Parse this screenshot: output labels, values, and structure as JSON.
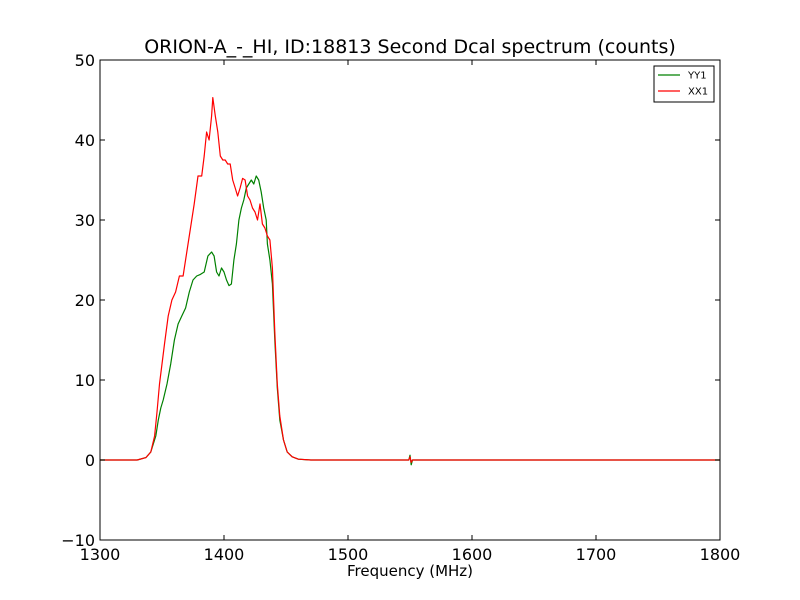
{
  "chart_data": {
    "type": "line",
    "title": "ORION-A_-_HI, ID:18813 Second Dcal spectrum (counts)",
    "xlabel": "Frequency (MHz)",
    "ylabel": "",
    "xlim": [
      1300,
      1800
    ],
    "ylim": [
      -10,
      50
    ],
    "xticks": [
      1300,
      1400,
      1500,
      1600,
      1700,
      1800
    ],
    "yticks": [
      -10,
      0,
      10,
      20,
      30,
      40,
      50
    ],
    "grid": false,
    "legend_position": "top-right",
    "series": [
      {
        "name": "YY1",
        "color": "#008000",
        "points": [
          [
            1300,
            0
          ],
          [
            1330,
            0
          ],
          [
            1337,
            0.3
          ],
          [
            1341,
            1
          ],
          [
            1345,
            3
          ],
          [
            1347,
            5
          ],
          [
            1349,
            6.5
          ],
          [
            1351,
            7.5
          ],
          [
            1354,
            9.5
          ],
          [
            1357,
            12
          ],
          [
            1360,
            15
          ],
          [
            1363,
            17
          ],
          [
            1366,
            18
          ],
          [
            1369,
            19
          ],
          [
            1372,
            21
          ],
          [
            1375,
            22.5
          ],
          [
            1378,
            23
          ],
          [
            1381,
            23.2
          ],
          [
            1384,
            23.5
          ],
          [
            1387,
            25.5
          ],
          [
            1390,
            26
          ],
          [
            1392,
            25.5
          ],
          [
            1394,
            23.5
          ],
          [
            1396,
            23
          ],
          [
            1398,
            24
          ],
          [
            1400,
            23.5
          ],
          [
            1402,
            22.5
          ],
          [
            1404,
            21.8
          ],
          [
            1406,
            22
          ],
          [
            1408,
            25
          ],
          [
            1410,
            27
          ],
          [
            1412,
            30
          ],
          [
            1414,
            31.5
          ],
          [
            1416,
            32.5
          ],
          [
            1418,
            34
          ],
          [
            1420,
            34.5
          ],
          [
            1422,
            35
          ],
          [
            1424,
            34.5
          ],
          [
            1426,
            35.5
          ],
          [
            1428,
            35
          ],
          [
            1430,
            33.5
          ],
          [
            1432,
            31.5
          ],
          [
            1434,
            30
          ],
          [
            1435,
            27
          ],
          [
            1437,
            25
          ],
          [
            1439,
            22
          ],
          [
            1441,
            15
          ],
          [
            1443,
            9
          ],
          [
            1445,
            5
          ],
          [
            1448,
            2.5
          ],
          [
            1451,
            1
          ],
          [
            1455,
            0.4
          ],
          [
            1460,
            0.1
          ],
          [
            1470,
            0
          ],
          [
            1500,
            0
          ],
          [
            1549,
            0
          ],
          [
            1550,
            0.6
          ],
          [
            1551,
            -0.6
          ],
          [
            1552,
            0
          ],
          [
            1600,
            0
          ],
          [
            1700,
            0
          ],
          [
            1800,
            0
          ]
        ]
      },
      {
        "name": "XX1",
        "color": "#ff0000",
        "points": [
          [
            1300,
            0
          ],
          [
            1330,
            0
          ],
          [
            1337,
            0.3
          ],
          [
            1341,
            1
          ],
          [
            1344,
            3
          ],
          [
            1346,
            6
          ],
          [
            1348,
            9.5
          ],
          [
            1350,
            12
          ],
          [
            1352,
            14.5
          ],
          [
            1355,
            18
          ],
          [
            1358,
            20
          ],
          [
            1361,
            21
          ],
          [
            1364,
            23
          ],
          [
            1367,
            23
          ],
          [
            1370,
            26
          ],
          [
            1373,
            29
          ],
          [
            1376,
            32
          ],
          [
            1379,
            35.5
          ],
          [
            1382,
            35.5
          ],
          [
            1384,
            38
          ],
          [
            1386,
            41
          ],
          [
            1388,
            40
          ],
          [
            1390,
            43
          ],
          [
            1391,
            45.3
          ],
          [
            1393,
            43
          ],
          [
            1395,
            41
          ],
          [
            1397,
            38
          ],
          [
            1399,
            37.5
          ],
          [
            1401,
            37.5
          ],
          [
            1403,
            37
          ],
          [
            1405,
            37
          ],
          [
            1407,
            35
          ],
          [
            1409,
            34
          ],
          [
            1411,
            33
          ],
          [
            1413,
            34
          ],
          [
            1415,
            35.2
          ],
          [
            1417,
            35
          ],
          [
            1419,
            33
          ],
          [
            1421,
            32.5
          ],
          [
            1423,
            31.5
          ],
          [
            1425,
            31
          ],
          [
            1427,
            30
          ],
          [
            1429,
            32
          ],
          [
            1431,
            29.5
          ],
          [
            1433,
            29
          ],
          [
            1435,
            28
          ],
          [
            1437,
            27.5
          ],
          [
            1439,
            24
          ],
          [
            1441,
            16
          ],
          [
            1443,
            9.5
          ],
          [
            1445,
            5.5
          ],
          [
            1448,
            2.5
          ],
          [
            1451,
            1
          ],
          [
            1455,
            0.4
          ],
          [
            1460,
            0.1
          ],
          [
            1470,
            0
          ],
          [
            1500,
            0
          ],
          [
            1549,
            0
          ],
          [
            1550,
            0.4
          ],
          [
            1551,
            -0.3
          ],
          [
            1552,
            0
          ],
          [
            1600,
            0
          ],
          [
            1700,
            0
          ],
          [
            1800,
            0
          ]
        ]
      }
    ]
  }
}
